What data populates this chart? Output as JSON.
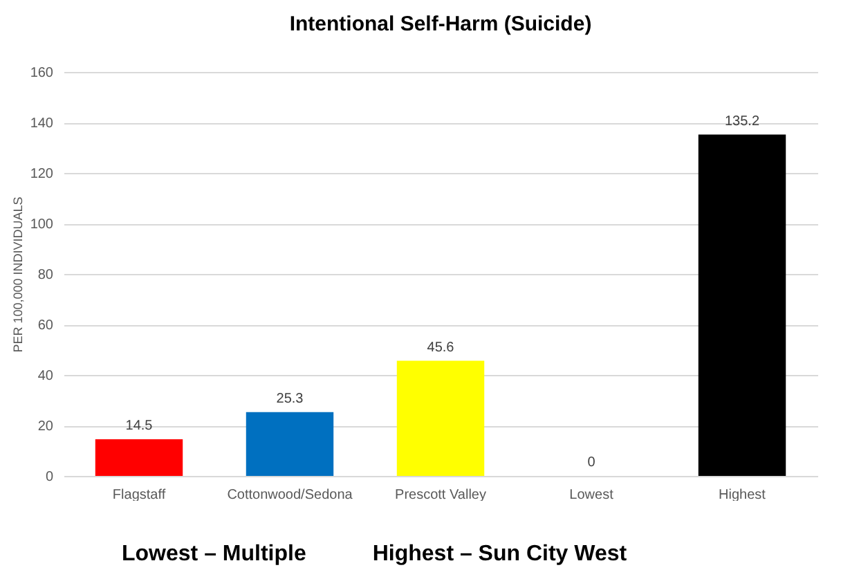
{
  "chart_data": {
    "type": "bar",
    "title": "Intentional Self-Harm (Suicide)",
    "ylabel": "PER 100,000 INDIVIDUALS",
    "categories": [
      "Flagstaff",
      "Cottonwood/Sedona",
      "Prescott Valley",
      "Lowest",
      "Highest"
    ],
    "values": [
      14.5,
      25.3,
      45.6,
      0,
      135.2
    ],
    "colors": [
      "#ff0000",
      "#0070c0",
      "#ffff00",
      "#a5a5a5",
      "#000000"
    ],
    "ylim": [
      0,
      160
    ],
    "yticks": [
      0,
      20,
      40,
      60,
      80,
      100,
      120,
      140,
      160
    ],
    "grid": "y",
    "data_labels": true,
    "annotations": [
      "Lowest – Multiple",
      "Highest – Sun City West"
    ]
  }
}
